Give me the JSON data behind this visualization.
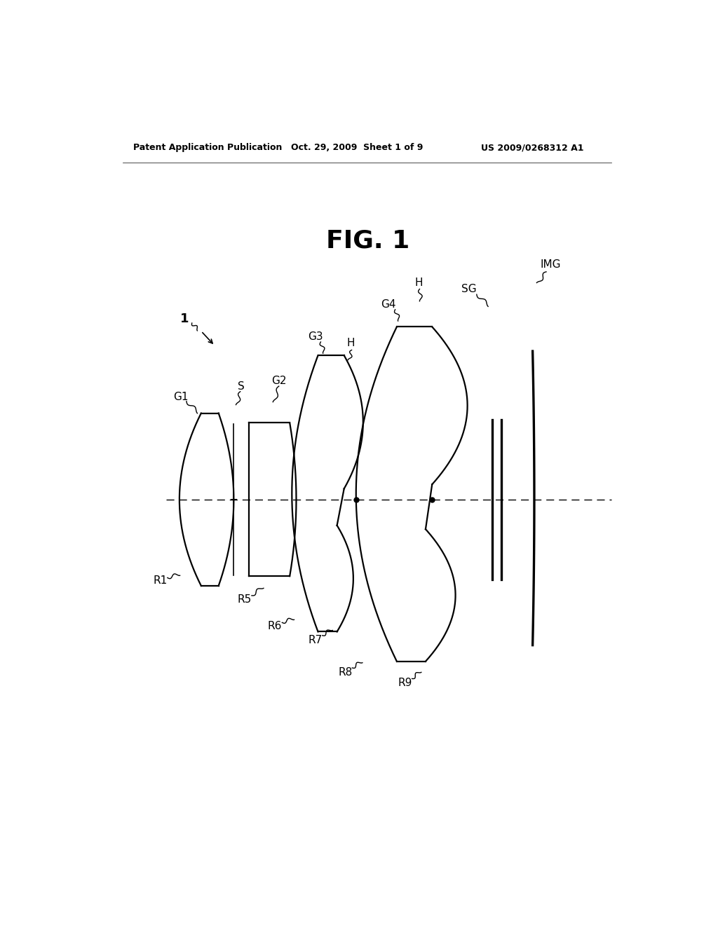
{
  "title": "FIG. 1",
  "header_left": "Patent Application Publication",
  "header_mid": "Oct. 29, 2009  Sheet 1 of 9",
  "header_right": "US 2009/0268312 A1",
  "background_color": "#ffffff",
  "line_color": "#000000",
  "lw": 1.6
}
